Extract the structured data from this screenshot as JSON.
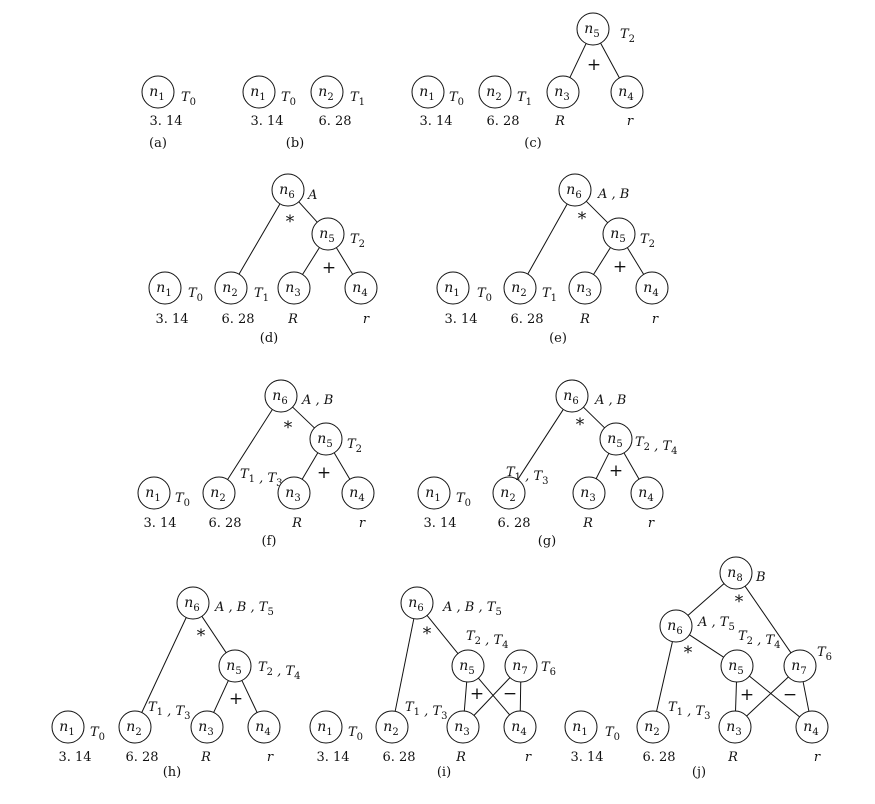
{
  "panels": [
    {
      "caption": "(a)",
      "nodes": [
        {
          "id": "n1",
          "sub": "1",
          "ann": "T0",
          "value": "3.14"
        }
      ],
      "edges": [],
      "ops": []
    },
    {
      "caption": "(b)",
      "nodes": [
        {
          "id": "n1",
          "sub": "1",
          "ann": "T0",
          "value": "3.14"
        },
        {
          "id": "n2",
          "sub": "2",
          "ann": "T1",
          "value": "6.28"
        }
      ],
      "edges": [],
      "ops": []
    },
    {
      "caption": "(c)",
      "nodes": [
        {
          "id": "n1",
          "sub": "1",
          "ann": "T0",
          "value": "3.14"
        },
        {
          "id": "n2",
          "sub": "2",
          "ann": "T1",
          "value": "6.28"
        },
        {
          "id": "n3",
          "sub": "3",
          "ann": "",
          "value": "R"
        },
        {
          "id": "n4",
          "sub": "4",
          "ann": "",
          "value": "r"
        },
        {
          "id": "n5",
          "sub": "5",
          "ann": "T2",
          "value": ""
        }
      ],
      "edges": [
        [
          "n5",
          "n3"
        ],
        [
          "n5",
          "n4"
        ]
      ],
      "ops": [
        {
          "symbol": "+"
        }
      ]
    },
    {
      "caption": "(d)",
      "nodes": [
        {
          "id": "n1",
          "sub": "1",
          "ann": "T0",
          "value": "3.14"
        },
        {
          "id": "n2",
          "sub": "2",
          "ann": "T1",
          "value": "6.28"
        },
        {
          "id": "n3",
          "sub": "3",
          "ann": "",
          "value": "R"
        },
        {
          "id": "n4",
          "sub": "4",
          "ann": "",
          "value": "r"
        },
        {
          "id": "n5",
          "sub": "5",
          "ann": "T2",
          "value": ""
        },
        {
          "id": "n6",
          "sub": "6",
          "ann": "A",
          "value": ""
        }
      ],
      "edges": [
        [
          "n5",
          "n3"
        ],
        [
          "n5",
          "n4"
        ],
        [
          "n6",
          "n2"
        ],
        [
          "n6",
          "n5"
        ]
      ],
      "ops": [
        {
          "symbol": "+"
        },
        {
          "symbol": "*"
        }
      ]
    },
    {
      "caption": "(e)",
      "nodes": [
        {
          "id": "n1",
          "sub": "1",
          "ann": "T0",
          "value": "3.14"
        },
        {
          "id": "n2",
          "sub": "2",
          "ann": "T1",
          "value": "6.28"
        },
        {
          "id": "n3",
          "sub": "3",
          "ann": "",
          "value": "R"
        },
        {
          "id": "n4",
          "sub": "4",
          "ann": "",
          "value": "r"
        },
        {
          "id": "n5",
          "sub": "5",
          "ann": "T2",
          "value": ""
        },
        {
          "id": "n6",
          "sub": "6",
          "ann": "A , B",
          "value": ""
        }
      ],
      "edges": [
        [
          "n5",
          "n3"
        ],
        [
          "n5",
          "n4"
        ],
        [
          "n6",
          "n2"
        ],
        [
          "n6",
          "n5"
        ]
      ],
      "ops": [
        {
          "symbol": "+"
        },
        {
          "symbol": "*"
        }
      ]
    },
    {
      "caption": "(f)",
      "nodes": [
        {
          "id": "n1",
          "sub": "1",
          "ann": "T0",
          "value": "3.14"
        },
        {
          "id": "n2",
          "sub": "2",
          "ann": "T1 , T3",
          "value": "6.28"
        },
        {
          "id": "n3",
          "sub": "3",
          "ann": "",
          "value": "R"
        },
        {
          "id": "n4",
          "sub": "4",
          "ann": "",
          "value": "r"
        },
        {
          "id": "n5",
          "sub": "5",
          "ann": "T2",
          "value": ""
        },
        {
          "id": "n6",
          "sub": "6",
          "ann": "A , B",
          "value": ""
        }
      ],
      "edges": [
        [
          "n5",
          "n3"
        ],
        [
          "n5",
          "n4"
        ],
        [
          "n6",
          "n2"
        ],
        [
          "n6",
          "n5"
        ]
      ],
      "ops": [
        {
          "symbol": "+"
        },
        {
          "symbol": "*"
        }
      ]
    },
    {
      "caption": "(g)",
      "nodes": [
        {
          "id": "n1",
          "sub": "1",
          "ann": "T0",
          "value": "3.14"
        },
        {
          "id": "n2",
          "sub": "2",
          "ann": "T1 , T3",
          "value": "6.28"
        },
        {
          "id": "n3",
          "sub": "3",
          "ann": "",
          "value": "R"
        },
        {
          "id": "n4",
          "sub": "4",
          "ann": "",
          "value": "r"
        },
        {
          "id": "n5",
          "sub": "5",
          "ann": "T2 , T4",
          "value": ""
        },
        {
          "id": "n6",
          "sub": "6",
          "ann": "A , B",
          "value": ""
        }
      ],
      "edges": [
        [
          "n5",
          "n3"
        ],
        [
          "n5",
          "n4"
        ],
        [
          "n6",
          "n2"
        ],
        [
          "n6",
          "n5"
        ]
      ],
      "ops": [
        {
          "symbol": "+"
        },
        {
          "symbol": "*"
        }
      ]
    },
    {
      "caption": "(h)",
      "nodes": [
        {
          "id": "n1",
          "sub": "1",
          "ann": "T0",
          "value": "3.14"
        },
        {
          "id": "n2",
          "sub": "2",
          "ann": "T1 , T3",
          "value": "6.28"
        },
        {
          "id": "n3",
          "sub": "3",
          "ann": "",
          "value": "R"
        },
        {
          "id": "n4",
          "sub": "4",
          "ann": "",
          "value": "r"
        },
        {
          "id": "n5",
          "sub": "5",
          "ann": "T2 , T4",
          "value": ""
        },
        {
          "id": "n6",
          "sub": "6",
          "ann": "A , B , T5",
          "value": ""
        }
      ],
      "edges": [
        [
          "n5",
          "n3"
        ],
        [
          "n5",
          "n4"
        ],
        [
          "n6",
          "n2"
        ],
        [
          "n6",
          "n5"
        ]
      ],
      "ops": [
        {
          "symbol": "+"
        },
        {
          "symbol": "*"
        }
      ]
    },
    {
      "caption": "(i)",
      "nodes": [
        {
          "id": "n1",
          "sub": "1",
          "ann": "T0",
          "value": "3.14"
        },
        {
          "id": "n2",
          "sub": "2",
          "ann": "T1 , T3",
          "value": "6.28"
        },
        {
          "id": "n3",
          "sub": "3",
          "ann": "",
          "value": "R"
        },
        {
          "id": "n4",
          "sub": "4",
          "ann": "",
          "value": "r"
        },
        {
          "id": "n5",
          "sub": "5",
          "ann": "T2 , T4",
          "value": ""
        },
        {
          "id": "n6",
          "sub": "6",
          "ann": "A , B , T5",
          "value": ""
        },
        {
          "id": "n7",
          "sub": "7",
          "ann": "T6",
          "value": ""
        }
      ],
      "edges": [
        [
          "n5",
          "n3"
        ],
        [
          "n5",
          "n4"
        ],
        [
          "n6",
          "n2"
        ],
        [
          "n6",
          "n5"
        ],
        [
          "n7",
          "n3"
        ],
        [
          "n7",
          "n4"
        ]
      ],
      "ops": [
        {
          "symbol": "+"
        },
        {
          "symbol": "−"
        },
        {
          "symbol": "*"
        }
      ]
    },
    {
      "caption": "(j)",
      "nodes": [
        {
          "id": "n1",
          "sub": "1",
          "ann": "T0",
          "value": "3.14"
        },
        {
          "id": "n2",
          "sub": "2",
          "ann": "T1 , T3",
          "value": "6.28"
        },
        {
          "id": "n3",
          "sub": "3",
          "ann": "",
          "value": "R"
        },
        {
          "id": "n4",
          "sub": "4",
          "ann": "",
          "value": "r"
        },
        {
          "id": "n5",
          "sub": "5",
          "ann": "T2 , T4",
          "value": ""
        },
        {
          "id": "n6",
          "sub": "6",
          "ann": "A , T5",
          "value": ""
        },
        {
          "id": "n7",
          "sub": "7",
          "ann": "T6",
          "value": ""
        },
        {
          "id": "n8",
          "sub": "8",
          "ann": "B",
          "value": ""
        }
      ],
      "edges": [
        [
          "n5",
          "n3"
        ],
        [
          "n5",
          "n4"
        ],
        [
          "n6",
          "n2"
        ],
        [
          "n6",
          "n5"
        ],
        [
          "n7",
          "n3"
        ],
        [
          "n7",
          "n4"
        ],
        [
          "n8",
          "n6"
        ],
        [
          "n8",
          "n7"
        ]
      ],
      "ops": [
        {
          "symbol": "+"
        },
        {
          "symbol": "−"
        },
        {
          "symbol": "*"
        },
        {
          "symbol": "*"
        }
      ]
    }
  ]
}
